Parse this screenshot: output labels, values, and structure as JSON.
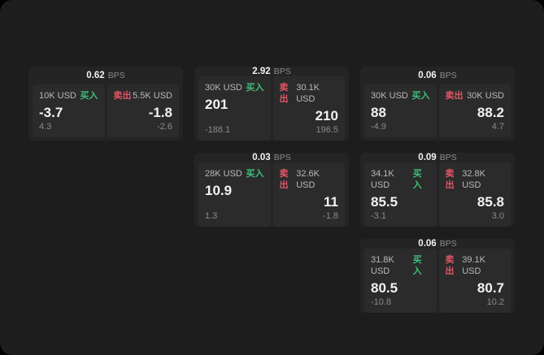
{
  "labels": {
    "buy": "买入",
    "sell": "卖出",
    "bps": "BPS"
  },
  "colors": {
    "outer-bg": "#000000",
    "panel-bg": "#1d1d1d",
    "card-bg": "#242424",
    "tile-bg": "#2b2b2b",
    "text-primary": "#f2f2f2",
    "text-secondary": "#8b8b8b",
    "text-label": "#b9b9b9",
    "buy-green": "#41bd78",
    "sell-red": "#e05666"
  },
  "cards": [
    {
      "bps": "0.62",
      "buy": {
        "size": "10K USD",
        "price": "-3.7",
        "change": "4.3"
      },
      "sell": {
        "size": "5.5K USD",
        "price": "-1.8",
        "change": "-2.6"
      }
    },
    {
      "bps": "2.92",
      "buy": {
        "size": "30K USD",
        "price": "201",
        "change": "-188.1"
      },
      "sell": {
        "size": "30.1K USD",
        "price": "210",
        "change": "196.5"
      }
    },
    {
      "bps": "0.06",
      "buy": {
        "size": "30K USD",
        "price": "88",
        "change": "-4.9"
      },
      "sell": {
        "size": "30K USD",
        "price": "88.2",
        "change": "4.7"
      }
    },
    {
      "bps": "0.03",
      "buy": {
        "size": "28K USD",
        "price": "10.9",
        "change": "1.3"
      },
      "sell": {
        "size": "32.6K USD",
        "price": "11",
        "change": "-1.8"
      }
    },
    {
      "bps": "0.09",
      "buy": {
        "size": "34.1K USD",
        "price": "85.5",
        "change": "-3.1"
      },
      "sell": {
        "size": "32.8K USD",
        "price": "85.8",
        "change": "3.0"
      }
    },
    {
      "bps": "0.06",
      "buy": {
        "size": "31.8K USD",
        "price": "80.5",
        "change": "-10.8"
      },
      "sell": {
        "size": "39.1K USD",
        "price": "80.7",
        "change": "10.2"
      }
    }
  ]
}
